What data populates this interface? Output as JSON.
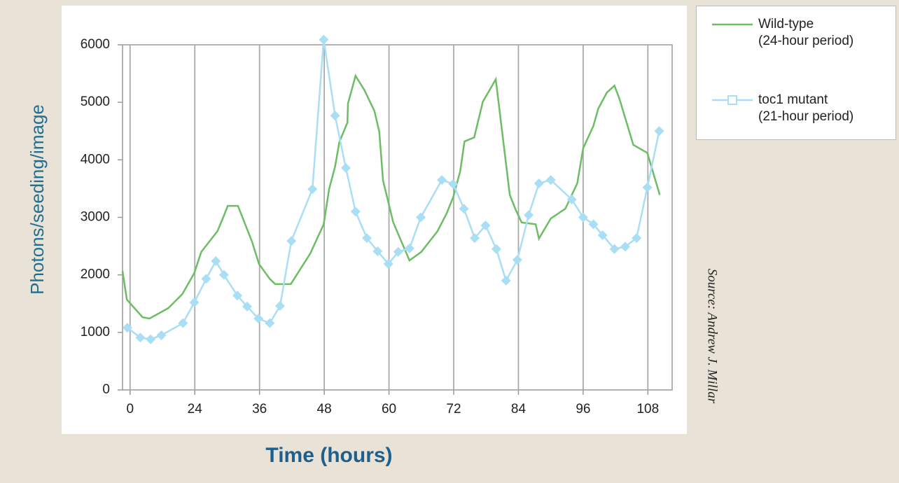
{
  "chart_data": {
    "type": "line",
    "x_label": "Time (hours)",
    "y_label": "Photons/seeding/image",
    "source": "Source: Andrew J. Millar",
    "xlim": [
      10.6,
      112.5
    ],
    "ylim": [
      0,
      6000
    ],
    "xticks": [
      {
        "value": 12,
        "label": "0"
      },
      24,
      36,
      48,
      60,
      72,
      84,
      96,
      108
    ],
    "yticks": [
      0,
      1000,
      2000,
      3000,
      4000,
      5000,
      6000
    ],
    "grid": true,
    "series": [
      {
        "name": "Wild-type\n(24-hour period)",
        "color": "#6cbd64",
        "marker": "none",
        "x": [
          10.6,
          11.4,
          14.3,
          15.6,
          19.1,
          21.7,
          23.9,
          25.2,
          28.2,
          29.4,
          30.1,
          32.0,
          34.6,
          35.9,
          37.9,
          38.9,
          41.8,
          45.4,
          47.9,
          48.9,
          50.0,
          50.8,
          52.3,
          52.4,
          53.8,
          55.4,
          57.3,
          58.2,
          58.9,
          60.8,
          63.8,
          66.0,
          69.0,
          70.7,
          71.9,
          73.2,
          74.0,
          75.8,
          77.4,
          79.8,
          82.4,
          83.5,
          84.6,
          87.2,
          87.8,
          90.0,
          92.7,
          93.9,
          94.9,
          96.0,
          97.9,
          98.8,
          100.4,
          101.8,
          102.7,
          105.3,
          107.9,
          110.2
        ],
        "values": [
          2068,
          1570,
          1265,
          1240,
          1423,
          1667,
          2030,
          2400,
          2760,
          3030,
          3200,
          3200,
          2580,
          2190,
          1930,
          1840,
          1840,
          2370,
          2880,
          3490,
          3880,
          4310,
          4650,
          4980,
          5460,
          5220,
          4850,
          4490,
          3640,
          2910,
          2250,
          2400,
          2760,
          3070,
          3350,
          3800,
          4320,
          4390,
          5010,
          5400,
          3390,
          3130,
          2910,
          2880,
          2630,
          2980,
          3150,
          3390,
          3590,
          4200,
          4590,
          4890,
          5170,
          5290,
          5070,
          4260,
          4120,
          3390
        ]
      },
      {
        "name": "toc1 mutant\n(21-hour period)",
        "color": "#a9def5",
        "marker": "diamond",
        "x": [
          11.5,
          13.9,
          15.8,
          17.8,
          21.8,
          23.9,
          26.1,
          27.9,
          29.4,
          31.9,
          33.7,
          35.8,
          37.9,
          39.8,
          41.9,
          45.8,
          47.9,
          50.0,
          52.0,
          53.8,
          55.9,
          57.9,
          59.9,
          61.7,
          63.8,
          65.9,
          69.8,
          71.9,
          73.9,
          75.9,
          77.9,
          79.9,
          81.7,
          83.8,
          85.9,
          87.8,
          90.0,
          93.9,
          96.0,
          97.9,
          99.6,
          101.8,
          103.8,
          105.9,
          107.9,
          110.1
        ],
        "values": [
          1080,
          910,
          880,
          950,
          1160,
          1520,
          1930,
          2240,
          2000,
          1640,
          1450,
          1240,
          1160,
          1460,
          2590,
          3490,
          6090,
          4770,
          3860,
          3100,
          2640,
          2410,
          2190,
          2400,
          2460,
          3000,
          3650,
          3580,
          3150,
          2640,
          2860,
          2450,
          1900,
          2260,
          3040,
          3590,
          3650,
          3310,
          3000,
          2880,
          2690,
          2450,
          2490,
          2640,
          3520,
          4500
        ]
      }
    ]
  }
}
